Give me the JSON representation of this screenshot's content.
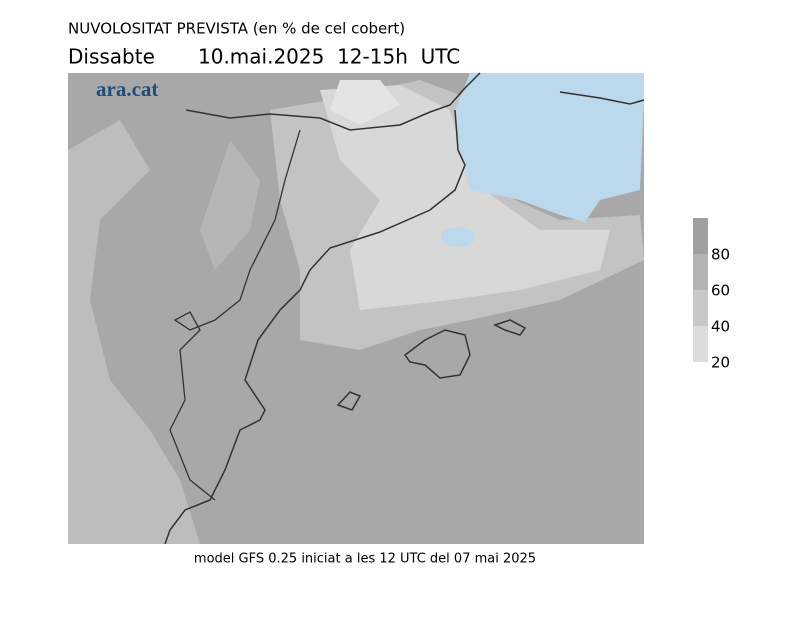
{
  "header": {
    "title": "NUVOLOSITAT PREVISTA (en % de cel cobert)",
    "day": "Dissabte",
    "date": "10.mai.2025  12-15h  UTC"
  },
  "map": {
    "logo": "ara.cat"
  },
  "legend": {
    "labels": [
      80,
      60,
      40,
      20
    ]
  },
  "footer": {
    "text": "model GFS 0.25 iniciat a les 12 UTC del 07 mai 2025"
  }
}
